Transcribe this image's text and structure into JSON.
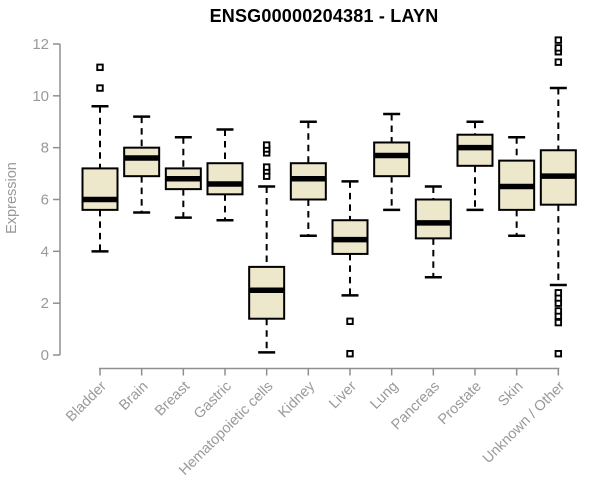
{
  "chart_data": {
    "type": "boxplot",
    "title": "ENSG00000204381 - LAYN",
    "xlabel": "",
    "ylabel": "Expression",
    "ylim": [
      0,
      12
    ],
    "yticks": [
      0,
      2,
      4,
      6,
      8,
      10,
      12
    ],
    "grid": false,
    "legend": "none",
    "categories": [
      "Bladder",
      "Brain",
      "Breast",
      "Gastric",
      "Hematopoietic cells",
      "Kidney",
      "Liver",
      "Lung",
      "Pancreas",
      "Prostate",
      "Skin",
      "Unknown / Other"
    ],
    "boxes": [
      {
        "category": "Bladder",
        "whisker_low": 4.0,
        "q1": 5.6,
        "median": 6.0,
        "q3": 7.2,
        "whisker_high": 9.6,
        "outliers": [
          10.3,
          11.1
        ]
      },
      {
        "category": "Brain",
        "whisker_low": 5.5,
        "q1": 6.9,
        "median": 7.6,
        "q3": 8.0,
        "whisker_high": 9.2,
        "outliers": []
      },
      {
        "category": "Breast",
        "whisker_low": 5.3,
        "q1": 6.4,
        "median": 6.8,
        "q3": 7.2,
        "whisker_high": 8.4,
        "outliers": []
      },
      {
        "category": "Gastric",
        "whisker_low": 5.2,
        "q1": 6.2,
        "median": 6.6,
        "q3": 7.4,
        "whisker_high": 8.7,
        "outliers": []
      },
      {
        "category": "Hematopoietic cells",
        "whisker_low": 0.1,
        "q1": 1.4,
        "median": 2.5,
        "q3": 3.4,
        "whisker_high": 6.5,
        "outliers": [
          6.9,
          7.1,
          7.25,
          7.8,
          7.95,
          8.1
        ]
      },
      {
        "category": "Kidney",
        "whisker_low": 4.6,
        "q1": 6.0,
        "median": 6.8,
        "q3": 7.4,
        "whisker_high": 9.0,
        "outliers": []
      },
      {
        "category": "Liver",
        "whisker_low": 2.3,
        "q1": 3.9,
        "median": 4.45,
        "q3": 5.2,
        "whisker_high": 6.7,
        "outliers": [
          0.05,
          1.3
        ]
      },
      {
        "category": "Lung",
        "whisker_low": 5.6,
        "q1": 6.9,
        "median": 7.7,
        "q3": 8.2,
        "whisker_high": 9.3,
        "outliers": []
      },
      {
        "category": "Pancreas",
        "whisker_low": 3.0,
        "q1": 4.5,
        "median": 5.1,
        "q3": 6.0,
        "whisker_high": 6.5,
        "outliers": []
      },
      {
        "category": "Prostate",
        "whisker_low": 5.6,
        "q1": 7.3,
        "median": 8.0,
        "q3": 8.5,
        "whisker_high": 9.0,
        "outliers": []
      },
      {
        "category": "Skin",
        "whisker_low": 4.6,
        "q1": 5.6,
        "median": 6.5,
        "q3": 7.5,
        "whisker_high": 8.4,
        "outliers": []
      },
      {
        "category": "Unknown / Other",
        "whisker_low": 2.7,
        "q1": 5.8,
        "median": 6.9,
        "q3": 7.9,
        "whisker_high": 10.3,
        "outliers": [
          0.05,
          1.25,
          1.5,
          1.7,
          2.0,
          2.2,
          2.4,
          11.3,
          11.7,
          11.85,
          12.15
        ]
      }
    ],
    "colors": {
      "box_fill": "#ede8cc",
      "box_stroke": "#000000",
      "median": "#000000",
      "whisker": "#000000",
      "axis": "#8f8f8f",
      "tick_text": "#999999",
      "title_text": "#000000",
      "background": "#ffffff"
    }
  }
}
